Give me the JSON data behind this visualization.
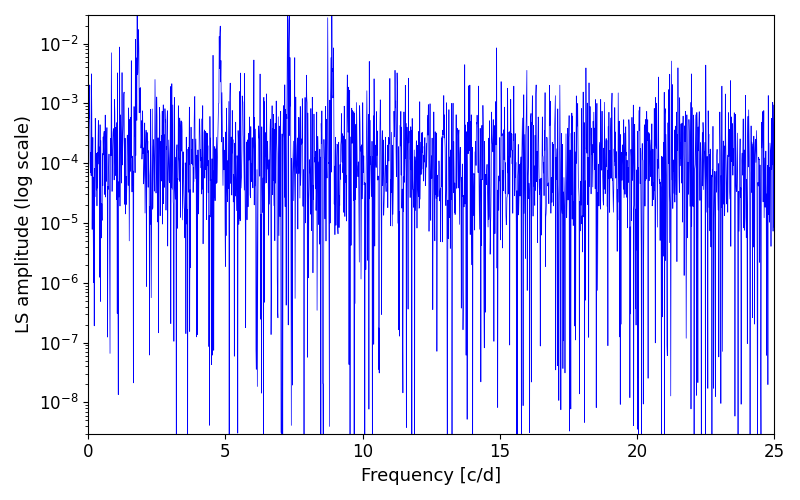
{
  "xlabel": "Frequency [c/d]",
  "ylabel": "LS amplitude (log scale)",
  "xlim": [
    0,
    25
  ],
  "ylim": [
    3e-09,
    0.03
  ],
  "line_color": "#0000ff",
  "line_width": 0.5,
  "figsize": [
    8.0,
    5.0
  ],
  "dpi": 100,
  "num_points": 2000,
  "seed": 17,
  "background_color": "#ffffff",
  "tick_labelsize": 12,
  "label_fontsize": 13
}
